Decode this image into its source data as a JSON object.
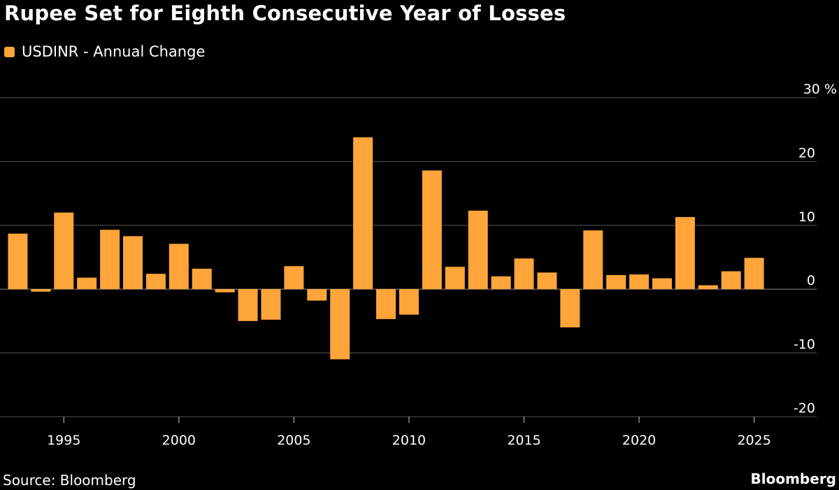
{
  "title": "Rupee Set for Eighth Consecutive Year of Losses",
  "source": "Source: Bloomberg",
  "brand": "Bloomberg",
  "colors": {
    "background": "#000000",
    "bar": "#FFA53A",
    "grid": "#555555",
    "text": "#FFFFFF"
  },
  "chart_data": {
    "type": "bar",
    "legend": {
      "position": "top-left",
      "entries": [
        "USDINR - Annual Change"
      ]
    },
    "series": [
      {
        "name": "USDINR - Annual Change",
        "x": [
          1993,
          1994,
          1995,
          1996,
          1997,
          1998,
          1999,
          2000,
          2001,
          2002,
          2003,
          2004,
          2005,
          2006,
          2007,
          2008,
          2009,
          2010,
          2011,
          2012,
          2013,
          2014,
          2015,
          2016,
          2017,
          2018,
          2019,
          2020,
          2021,
          2022,
          2023,
          2024,
          2025
        ],
        "values": [
          8.7,
          -0.4,
          12.0,
          1.8,
          9.3,
          8.3,
          2.4,
          7.1,
          3.2,
          -0.5,
          -5.0,
          -4.8,
          3.6,
          -1.8,
          -11.0,
          23.8,
          -4.7,
          -4.0,
          18.6,
          3.5,
          12.3,
          2.0,
          4.8,
          2.6,
          -6.0,
          9.2,
          2.2,
          2.3,
          1.7,
          11.3,
          0.6,
          2.8,
          4.9
        ]
      }
    ],
    "x_ticks": [
      1995,
      2000,
      2005,
      2010,
      2015,
      2020,
      2025
    ],
    "y_ticks": [
      -20,
      -10,
      0,
      10,
      20,
      30
    ],
    "y_tick_labels": [
      "-20",
      "-10",
      "0",
      "10",
      "20",
      "30 %"
    ],
    "ylim": [
      -20,
      30
    ],
    "xlim": [
      1992.5,
      2026.5
    ],
    "y_axis_side": "right",
    "grid": true
  }
}
